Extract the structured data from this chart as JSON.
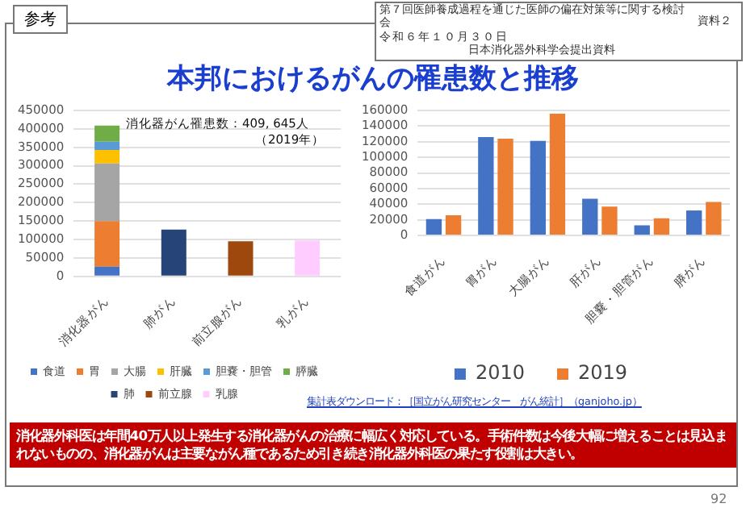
{
  "chart_data": [
    {
      "type": "bar",
      "title": "本邦におけるがんの罹患数と推移",
      "stacked": true,
      "grid": "y",
      "legend": "bottom",
      "categories": [
        "消化器がん",
        "肺がん",
        "前立腺がん",
        "乳がん"
      ],
      "series": [
        {
          "name": "食道",
          "color": "#4472c4",
          "values": [
            26000,
            null,
            null,
            null
          ]
        },
        {
          "name": "胃",
          "color": "#ed7d31",
          "values": [
            124000,
            null,
            null,
            null
          ]
        },
        {
          "name": "大腸",
          "color": "#a5a5a5",
          "values": [
            156000,
            null,
            null,
            null
          ]
        },
        {
          "name": "肝臓",
          "color": "#ffc000",
          "values": [
            37000,
            null,
            null,
            null
          ]
        },
        {
          "name": "胆嚢・胆管",
          "color": "#5b9bd5",
          "values": [
            22000,
            null,
            null,
            null
          ]
        },
        {
          "name": "膵臓",
          "color": "#70ad47",
          "values": [
            44000,
            null,
            null,
            null
          ]
        },
        {
          "name": "肺",
          "color": "#264478",
          "values": [
            null,
            127000,
            null,
            null
          ]
        },
        {
          "name": "前立腺",
          "color": "#9e480e",
          "values": [
            null,
            null,
            95000,
            null
          ]
        },
        {
          "name": "乳腺",
          "color": "#ffccff",
          "values": [
            null,
            null,
            null,
            97000
          ]
        }
      ],
      "ylim": [
        0,
        450000
      ],
      "yticks": [
        0,
        50000,
        100000,
        150000,
        200000,
        250000,
        300000,
        350000,
        400000,
        450000
      ],
      "annotations": [
        "参考",
        "第７回医師養成過程を通じた医師の偏在対策等に関する検討会",
        "資料２",
        "令和６年１０月３０日",
        "日本消化器外科学会提出資料",
        "消化器がん罹患数：409, 645人",
        "（2019年）",
        "集計表ダウンロード：［国立がん研究センター　がん統計］（ganjoho.jp）",
        "消化器外科医は年間40万人以上発生する消化器がんの治療に幅広く対応している。手術件数は今後大幅に増えることは見込まれないものの、消化器がんは主要ながん種であるため引き続き消化器外科医の果たす役割は大きい。",
        "92"
      ]
    },
    {
      "type": "bar",
      "grid": "y",
      "legend": "bottom",
      "categories": [
        "食道がん",
        "胃がん",
        "大腸がん",
        "肝がん",
        "胆嚢・胆管がん",
        "膵がん"
      ],
      "series": [
        {
          "name": "2010",
          "color": "#4472c4",
          "values": [
            21000,
            126000,
            121000,
            47000,
            13000,
            32000
          ]
        },
        {
          "name": "2019",
          "color": "#ed7d31",
          "values": [
            26000,
            124000,
            156000,
            37000,
            22000,
            43000
          ]
        }
      ],
      "ylim": [
        0,
        160000
      ],
      "yticks": [
        0,
        20000,
        40000,
        60000,
        80000,
        100000,
        120000,
        140000,
        160000
      ]
    }
  ]
}
